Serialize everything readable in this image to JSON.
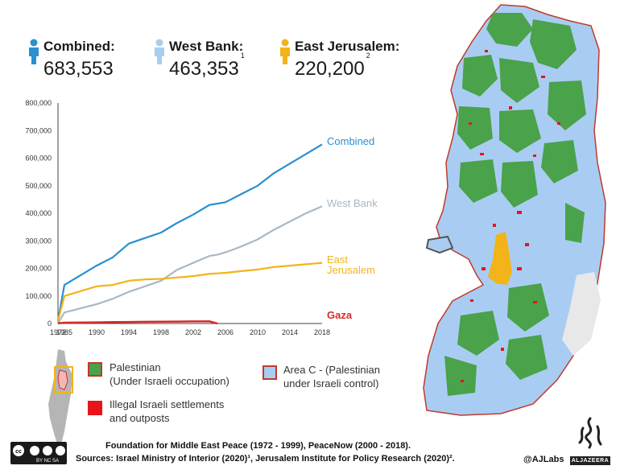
{
  "stats": {
    "combined": {
      "label": "Combined:",
      "value": "683,553",
      "note": "",
      "color": "#2b8fd0"
    },
    "west_bank": {
      "label": "West Bank:",
      "value": "463,353",
      "note": "1",
      "color": "#a9cfee"
    },
    "east_jerusalem": {
      "label": "East Jerusalem:",
      "value": "220,200",
      "note": "2",
      "color": "#f2b418"
    }
  },
  "chart_data": {
    "type": "line",
    "x": [
      1972,
      1985,
      1990,
      1992,
      1994,
      1996,
      1998,
      2000,
      2002,
      2004,
      2005,
      2006,
      2008,
      2010,
      2012,
      2014,
      2016,
      2018
    ],
    "x_tick_labels": [
      "1972",
      "1985",
      "1990",
      "1994",
      "1998",
      "2002",
      "2006",
      "2010",
      "2014",
      "2018"
    ],
    "y_tick_labels": [
      "0",
      "100,000",
      "200,000",
      "300,000",
      "400,000",
      "500,000",
      "600,000",
      "700,000",
      "800,000"
    ],
    "ylim": [
      0,
      800000
    ],
    "series": [
      {
        "name": "Combined",
        "color": "#2b8fd0",
        "values": [
          10000,
          140000,
          210000,
          240000,
          290000,
          310000,
          330000,
          365000,
          395000,
          430000,
          435000,
          440000,
          470000,
          500000,
          545000,
          580000,
          615000,
          650000
        ]
      },
      {
        "name": "West Bank",
        "color": "#a9b8c4",
        "values": [
          1000,
          40000,
          70000,
          90000,
          115000,
          135000,
          155000,
          195000,
          220000,
          245000,
          250000,
          258000,
          280000,
          305000,
          340000,
          370000,
          400000,
          425000
        ]
      },
      {
        "name": "East Jerusalem",
        "color": "#f2b418",
        "values": [
          9000,
          100000,
          135000,
          140000,
          155000,
          160000,
          162000,
          167000,
          172000,
          180000,
          182000,
          184000,
          190000,
          196000,
          205000,
          210000,
          215000,
          220000
        ]
      },
      {
        "name": "Gaza",
        "color": "#d52b2b",
        "values": [
          700,
          3000,
          4000,
          5000,
          5500,
          6000,
          6500,
          7000,
          7500,
          8000,
          0,
          null,
          null,
          null,
          null,
          null,
          null,
          null
        ]
      }
    ]
  },
  "series_labels": {
    "combined": "Combined",
    "west_bank": "West Bank",
    "east_jerusalem_1": "East",
    "east_jerusalem_2": "Jerusalem",
    "gaza": "Gaza"
  },
  "legend": {
    "palestinian_1": "Palestinian",
    "palestinian_2": "(Under Israeli occupation)",
    "area_c_1": "Area C - (Palestinian",
    "area_c_2": "under Israeli control)",
    "settlements_1": "Illegal Israeli settlements",
    "settlements_2": "and outposts",
    "colors": {
      "palestinian": "#4aa24a",
      "area_c": "#a9cdf2",
      "settlement": "#e8141b",
      "border": "#c0392b"
    }
  },
  "footer": {
    "cc_badge": "BY NC SA",
    "line1": "Foundation for Middle East Peace (1972 - 1999), PeaceNow (2000 - 2018).",
    "line2": "Sources: Israel Ministry of Interior (2020)¹, Jerusalem Institute for Policy Research (2020)².",
    "handle": "@AJLabs",
    "brand": "ALJAZEERA"
  }
}
